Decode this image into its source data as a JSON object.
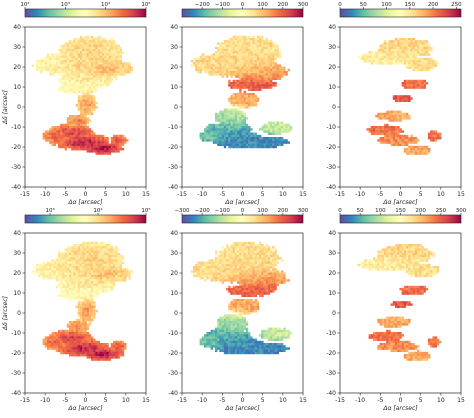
{
  "figure": {
    "rows": 2,
    "cols": 3,
    "note_x_axis_label": "Δα [arcsec]",
    "note_y_axis_label": "Δδ [arcsec]"
  },
  "colormaps": {
    "spectral": [
      "#5e4fa2",
      "#3288bd",
      "#66c2a5",
      "#abdda4",
      "#e6f598",
      "#ffffbf",
      "#fee08b",
      "#fdae61",
      "#f46d43",
      "#d53e4f",
      "#9e0142"
    ]
  },
  "chart_data": [
    {
      "type": "heatmap",
      "panel": "row1-col1",
      "quantity": "intensity",
      "xlabel": "Δα [arcsec]",
      "ylabel": "Δδ [arcsec]",
      "xlim": [
        -15,
        15
      ],
      "ylim": [
        -40,
        40
      ],
      "xticks": [
        "-15",
        "-10",
        "-5",
        "0",
        "5",
        "10",
        "15"
      ],
      "yticks": [
        "40",
        "30",
        "20",
        "10",
        "0",
        "-10",
        "-20",
        "-30",
        "-40"
      ],
      "colorbar": {
        "scale": "log",
        "ticks": [
          "10²",
          "10³",
          "10⁴",
          "10⁵"
        ],
        "range": [
          100,
          100000
        ]
      },
      "xtick_values": [
        -15,
        -10,
        -5,
        0,
        5,
        10,
        15
      ],
      "ytick_values": [
        40,
        30,
        20,
        10,
        0,
        -10,
        -20,
        -30,
        -40
      ],
      "colorbar_tick_values": [
        2,
        3,
        4,
        5
      ]
    },
    {
      "type": "heatmap",
      "panel": "row1-col2",
      "quantity": "velocity",
      "xlabel": "Δα [arcsec]",
      "ylabel": "",
      "xlim": [
        -15,
        15
      ],
      "ylim": [
        -40,
        40
      ],
      "xticks": [
        "-15",
        "-10",
        "-5",
        "0",
        "5",
        "10",
        "15"
      ],
      "yticks": [
        "40",
        "30",
        "20",
        "10",
        "0",
        "-10",
        "-20",
        "-30",
        "-40"
      ],
      "colorbar": {
        "scale": "linear",
        "ticks": [
          "−200",
          "−100",
          "0",
          "100",
          "200",
          "300"
        ],
        "range": [
          -300,
          300
        ]
      },
      "xtick_values": [
        -15,
        -10,
        -5,
        0,
        5,
        10,
        15
      ],
      "ytick_values": [
        40,
        30,
        20,
        10,
        0,
        -10,
        -20,
        -30,
        -40
      ],
      "colorbar_tick_values": [
        -200,
        -100,
        0,
        100,
        200,
        300
      ]
    },
    {
      "type": "heatmap",
      "panel": "row1-col3",
      "quantity": "dispersion",
      "xlabel": "Δα [arcsec]",
      "ylabel": "",
      "xlim": [
        -15,
        15
      ],
      "ylim": [
        -40,
        40
      ],
      "xticks": [
        "-15",
        "-10",
        "-5",
        "0",
        "5",
        "10",
        "15"
      ],
      "yticks": [
        "40",
        "30",
        "20",
        "10",
        "0",
        "-10",
        "-20",
        "-30",
        "-40"
      ],
      "colorbar": {
        "scale": "linear",
        "ticks": [
          "0",
          "50",
          "100",
          "150",
          "200",
          "250"
        ],
        "range": [
          0,
          260
        ]
      },
      "xtick_values": [
        -15,
        -10,
        -5,
        0,
        5,
        10,
        15
      ],
      "ytick_values": [
        40,
        30,
        20,
        10,
        0,
        -10,
        -20,
        -30,
        -40
      ],
      "colorbar_tick_values": [
        0,
        50,
        100,
        150,
        200,
        250
      ]
    },
    {
      "type": "heatmap",
      "panel": "row2-col1",
      "quantity": "intensity",
      "xlabel": "Δα [arcsec]",
      "ylabel": "Δδ [arcsec]",
      "xlim": [
        -15,
        15
      ],
      "ylim": [
        -40,
        40
      ],
      "xticks": [
        "-15",
        "-10",
        "-5",
        "0",
        "5",
        "10",
        "15"
      ],
      "yticks": [
        "40",
        "30",
        "20",
        "10",
        "0",
        "-10",
        "-20",
        "-30",
        "-40"
      ],
      "colorbar": {
        "scale": "log",
        "ticks": [
          "10³",
          "10⁴",
          "10⁵"
        ],
        "range": [
          300,
          100000
        ]
      },
      "xtick_values": [
        -15,
        -10,
        -5,
        0,
        5,
        10,
        15
      ],
      "ytick_values": [
        40,
        30,
        20,
        10,
        0,
        -10,
        -20,
        -30,
        -40
      ],
      "colorbar_tick_values": [
        3,
        4,
        5
      ]
    },
    {
      "type": "heatmap",
      "panel": "row2-col2",
      "quantity": "velocity",
      "xlabel": "Δα [arcsec]",
      "ylabel": "",
      "xlim": [
        -15,
        15
      ],
      "ylim": [
        -40,
        40
      ],
      "xticks": [
        "-15",
        "-10",
        "-5",
        "0",
        "5",
        "10",
        "15"
      ],
      "yticks": [
        "40",
        "30",
        "20",
        "10",
        "0",
        "-10",
        "-20",
        "-30",
        "-40"
      ],
      "colorbar": {
        "scale": "linear",
        "ticks": [
          "−300",
          "−200",
          "−100",
          "0",
          "100",
          "200",
          "300"
        ],
        "range": [
          -300,
          300
        ]
      },
      "xtick_values": [
        -15,
        -10,
        -5,
        0,
        5,
        10,
        15
      ],
      "ytick_values": [
        40,
        30,
        20,
        10,
        0,
        -10,
        -20,
        -30,
        -40
      ],
      "colorbar_tick_values": [
        -300,
        -200,
        -100,
        0,
        100,
        200,
        300
      ]
    },
    {
      "type": "heatmap",
      "panel": "row2-col3",
      "quantity": "dispersion",
      "xlabel": "Δα [arcsec]",
      "ylabel": "",
      "xlim": [
        -15,
        15
      ],
      "ylim": [
        -40,
        40
      ],
      "xticks": [
        "-15",
        "-10",
        "-5",
        "0",
        "5",
        "10",
        "15"
      ],
      "yticks": [
        "40",
        "30",
        "20",
        "10",
        "0",
        "-10",
        "-20",
        "-30",
        "-40"
      ],
      "colorbar": {
        "scale": "linear",
        "ticks": [
          "0",
          "50",
          "100",
          "150",
          "200",
          "250",
          "300"
        ],
        "range": [
          0,
          300
        ]
      },
      "xtick_values": [
        -15,
        -10,
        -5,
        0,
        5,
        10,
        15
      ],
      "ytick_values": [
        40,
        30,
        20,
        10,
        0,
        -10,
        -20,
        -30,
        -40
      ],
      "colorbar_tick_values": [
        0,
        50,
        100,
        150,
        200,
        250,
        300
      ]
    }
  ]
}
